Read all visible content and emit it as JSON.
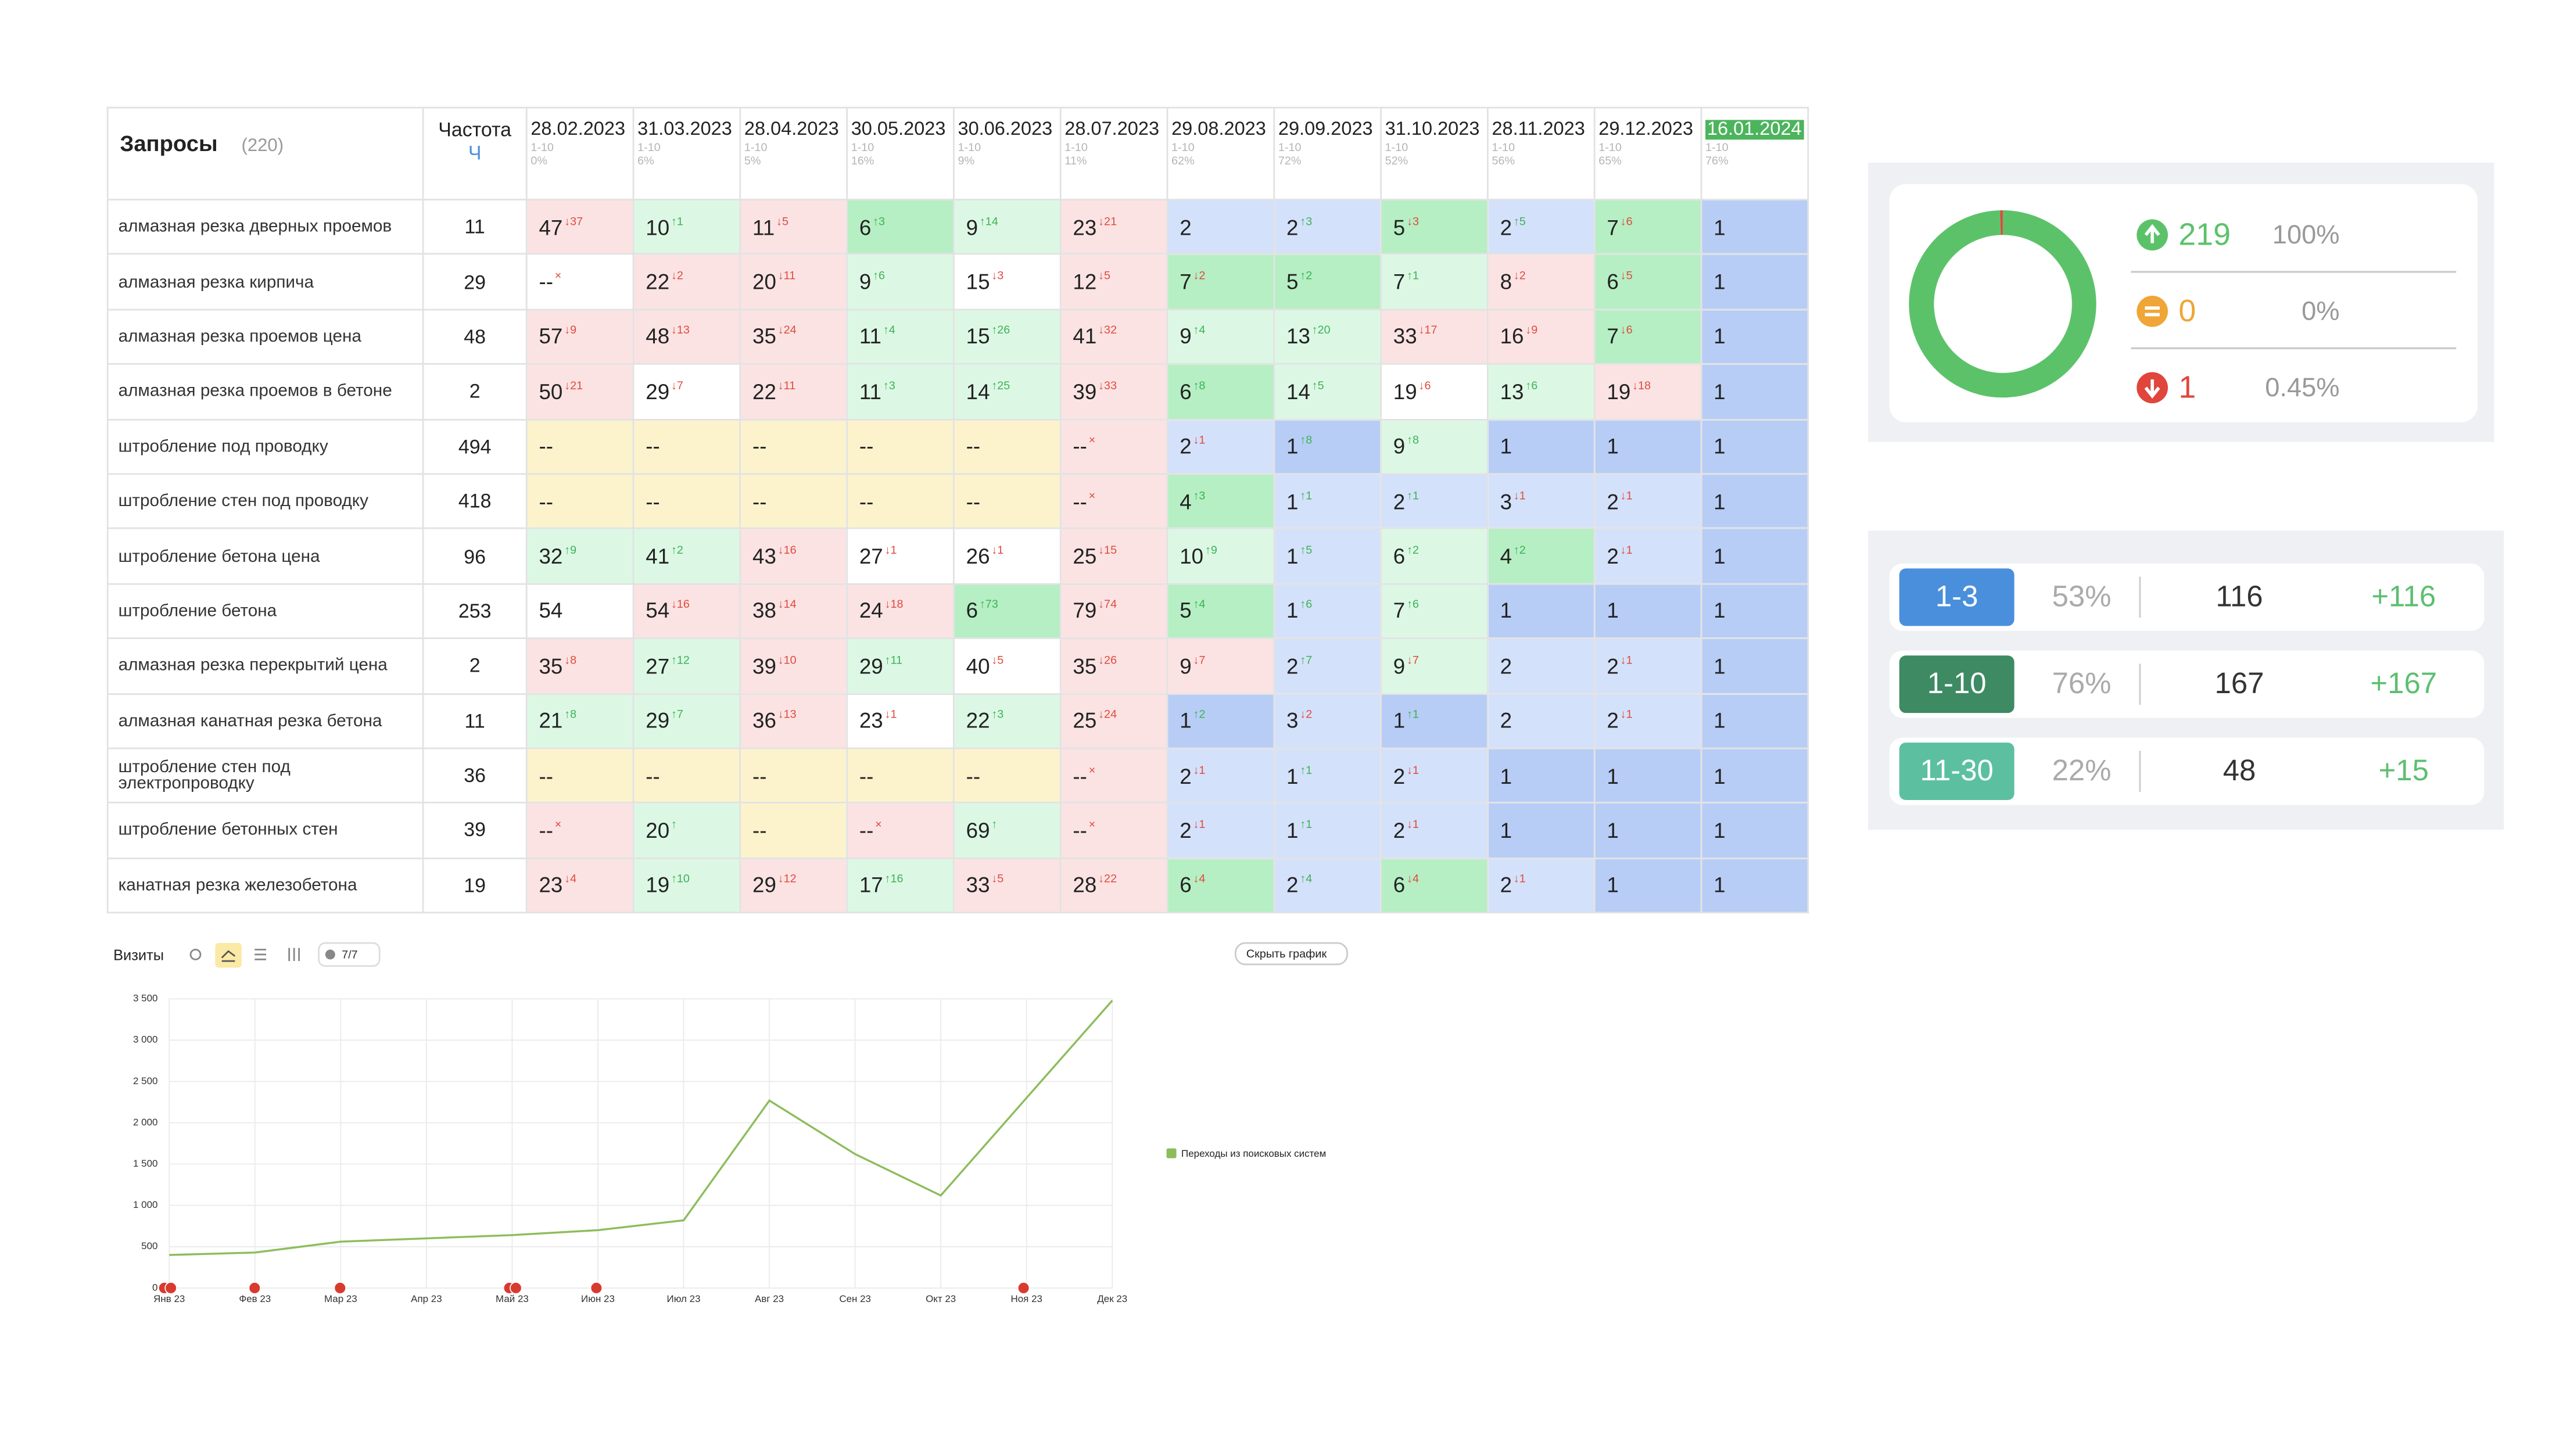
{
  "table": {
    "header": {
      "queries": "Запросы",
      "count": "(220)",
      "freq": "Частота",
      "freq_sub": "Ч"
    },
    "palette": {
      "r": "#fbe3e3",
      "w": "#ffffff",
      "g": "#dcf8e4",
      "G": "#b5efc3",
      "b": "#d4e1fb",
      "B": "#b7cdf6",
      "y": "#fcf3cd"
    },
    "dates": [
      {
        "date": "28.02.2023",
        "range": "1-10",
        "share": "0%"
      },
      {
        "date": "31.03.2023",
        "range": "1-10",
        "share": "6%"
      },
      {
        "date": "28.04.2023",
        "range": "1-10",
        "share": "5%"
      },
      {
        "date": "30.05.2023",
        "range": "1-10",
        "share": "16%"
      },
      {
        "date": "30.06.2023",
        "range": "1-10",
        "share": "9%"
      },
      {
        "date": "28.07.2023",
        "range": "1-10",
        "share": "11%"
      },
      {
        "date": "29.08.2023",
        "range": "1-10",
        "share": "62%"
      },
      {
        "date": "29.09.2023",
        "range": "1-10",
        "share": "72%"
      },
      {
        "date": "31.10.2023",
        "range": "1-10",
        "share": "52%"
      },
      {
        "date": "28.11.2023",
        "range": "1-10",
        "share": "56%"
      },
      {
        "date": "29.12.2023",
        "range": "1-10",
        "share": "65%"
      },
      {
        "date": "16.01.2024",
        "range": "1-10",
        "share": "76%"
      }
    ],
    "rows": [
      {
        "query": "алмазная резка дверных проемов",
        "freq": "11",
        "cells": [
          {
            "v": "47",
            "d": "↓37",
            "bg": "r"
          },
          {
            "v": "10",
            "d": "↑1",
            "bg": "g"
          },
          {
            "v": "11",
            "d": "↓5",
            "bg": "r"
          },
          {
            "v": "6",
            "d": "↑3",
            "bg": "G"
          },
          {
            "v": "9",
            "d": "↑14",
            "bg": "g"
          },
          {
            "v": "23",
            "d": "↓21",
            "bg": "r"
          },
          {
            "v": "2",
            "bg": "b"
          },
          {
            "v": "2",
            "d": "↑3",
            "bg": "b"
          },
          {
            "v": "5",
            "d": "↓3",
            "bg": "G"
          },
          {
            "v": "2",
            "d": "↑5",
            "bg": "b"
          },
          {
            "v": "7",
            "d": "↓6",
            "bg": "G"
          },
          {
            "v": "1",
            "bg": "B"
          }
        ]
      },
      {
        "query": "алмазная резка кирпича",
        "freq": "29",
        "cells": [
          {
            "v": "--",
            "d": "×",
            "bg": "w"
          },
          {
            "v": "22",
            "d": "↓2",
            "bg": "r"
          },
          {
            "v": "20",
            "d": "↓11",
            "bg": "r"
          },
          {
            "v": "9",
            "d": "↑6",
            "bg": "g"
          },
          {
            "v": "15",
            "d": "↓3",
            "bg": "w"
          },
          {
            "v": "12",
            "d": "↓5",
            "bg": "r"
          },
          {
            "v": "7",
            "d": "↓2",
            "bg": "G"
          },
          {
            "v": "5",
            "d": "↑2",
            "bg": "G"
          },
          {
            "v": "7",
            "d": "↑1",
            "bg": "g"
          },
          {
            "v": "8",
            "d": "↓2",
            "bg": "r"
          },
          {
            "v": "6",
            "d": "↓5",
            "bg": "G"
          },
          {
            "v": "1",
            "bg": "B"
          }
        ]
      },
      {
        "query": "алмазная резка проемов цена",
        "freq": "48",
        "cells": [
          {
            "v": "57",
            "d": "↓9",
            "bg": "r"
          },
          {
            "v": "48",
            "d": "↓13",
            "bg": "r"
          },
          {
            "v": "35",
            "d": "↓24",
            "bg": "r"
          },
          {
            "v": "11",
            "d": "↑4",
            "bg": "g"
          },
          {
            "v": "15",
            "d": "↑26",
            "bg": "g"
          },
          {
            "v": "41",
            "d": "↓32",
            "bg": "r"
          },
          {
            "v": "9",
            "d": "↑4",
            "bg": "g"
          },
          {
            "v": "13",
            "d": "↑20",
            "bg": "g"
          },
          {
            "v": "33",
            "d": "↓17",
            "bg": "r"
          },
          {
            "v": "16",
            "d": "↓9",
            "bg": "r"
          },
          {
            "v": "7",
            "d": "↓6",
            "bg": "G"
          },
          {
            "v": "1",
            "bg": "B"
          }
        ]
      },
      {
        "query": "алмазная резка проемов в бетоне",
        "freq": "2",
        "cells": [
          {
            "v": "50",
            "d": "↓21",
            "bg": "r"
          },
          {
            "v": "29",
            "d": "↓7",
            "bg": "w"
          },
          {
            "v": "22",
            "d": "↓11",
            "bg": "r"
          },
          {
            "v": "11",
            "d": "↑3",
            "bg": "g"
          },
          {
            "v": "14",
            "d": "↑25",
            "bg": "g"
          },
          {
            "v": "39",
            "d": "↓33",
            "bg": "r"
          },
          {
            "v": "6",
            "d": "↑8",
            "bg": "G"
          },
          {
            "v": "14",
            "d": "↑5",
            "bg": "g"
          },
          {
            "v": "19",
            "d": "↓6",
            "bg": "w"
          },
          {
            "v": "13",
            "d": "↑6",
            "bg": "g"
          },
          {
            "v": "19",
            "d": "↓18",
            "bg": "r"
          },
          {
            "v": "1",
            "bg": "B"
          }
        ]
      },
      {
        "query": "штробление под проводку",
        "freq": "494",
        "cells": [
          {
            "v": "--",
            "bg": "y"
          },
          {
            "v": "--",
            "bg": "y"
          },
          {
            "v": "--",
            "bg": "y"
          },
          {
            "v": "--",
            "bg": "y"
          },
          {
            "v": "--",
            "bg": "y"
          },
          {
            "v": "--",
            "d": "×",
            "bg": "r"
          },
          {
            "v": "2",
            "d": "↓1",
            "bg": "b"
          },
          {
            "v": "1",
            "d": "↑8",
            "bg": "B"
          },
          {
            "v": "9",
            "d": "↑8",
            "bg": "g"
          },
          {
            "v": "1",
            "bg": "B"
          },
          {
            "v": "1",
            "bg": "B"
          },
          {
            "v": "1",
            "bg": "B"
          }
        ]
      },
      {
        "query": "штробление стен под проводку",
        "freq": "418",
        "cells": [
          {
            "v": "--",
            "bg": "y"
          },
          {
            "v": "--",
            "bg": "y"
          },
          {
            "v": "--",
            "bg": "y"
          },
          {
            "v": "--",
            "bg": "y"
          },
          {
            "v": "--",
            "bg": "y"
          },
          {
            "v": "--",
            "d": "×",
            "bg": "r"
          },
          {
            "v": "4",
            "d": "↑3",
            "bg": "G"
          },
          {
            "v": "1",
            "d": "↑1",
            "bg": "b"
          },
          {
            "v": "2",
            "d": "↑1",
            "bg": "b"
          },
          {
            "v": "3",
            "d": "↓1",
            "bg": "b"
          },
          {
            "v": "2",
            "d": "↓1",
            "bg": "b"
          },
          {
            "v": "1",
            "bg": "B"
          }
        ]
      },
      {
        "query": "штробление бетона цена",
        "freq": "96",
        "cells": [
          {
            "v": "32",
            "d": "↑9",
            "bg": "g"
          },
          {
            "v": "41",
            "d": "↑2",
            "bg": "g"
          },
          {
            "v": "43",
            "d": "↓16",
            "bg": "r"
          },
          {
            "v": "27",
            "d": "↓1",
            "bg": "w"
          },
          {
            "v": "26",
            "d": "↓1",
            "bg": "w"
          },
          {
            "v": "25",
            "d": "↓15",
            "bg": "r"
          },
          {
            "v": "10",
            "d": "↑9",
            "bg": "g"
          },
          {
            "v": "1",
            "d": "↑5",
            "bg": "b"
          },
          {
            "v": "6",
            "d": "↑2",
            "bg": "g"
          },
          {
            "v": "4",
            "d": "↑2",
            "bg": "G"
          },
          {
            "v": "2",
            "d": "↓1",
            "bg": "b"
          },
          {
            "v": "1",
            "bg": "B"
          }
        ]
      },
      {
        "query": "штробление бетона",
        "freq": "253",
        "cells": [
          {
            "v": "54",
            "bg": "w"
          },
          {
            "v": "54",
            "d": "↓16",
            "bg": "r"
          },
          {
            "v": "38",
            "d": "↓14",
            "bg": "r"
          },
          {
            "v": "24",
            "d": "↓18",
            "bg": "r"
          },
          {
            "v": "6",
            "d": "↑73",
            "bg": "G"
          },
          {
            "v": "79",
            "d": "↓74",
            "bg": "r"
          },
          {
            "v": "5",
            "d": "↑4",
            "bg": "G"
          },
          {
            "v": "1",
            "d": "↑6",
            "bg": "b"
          },
          {
            "v": "7",
            "d": "↑6",
            "bg": "g"
          },
          {
            "v": "1",
            "bg": "B"
          },
          {
            "v": "1",
            "bg": "B"
          },
          {
            "v": "1",
            "bg": "B"
          }
        ]
      },
      {
        "query": "алмазная резка перекрытий цена",
        "freq": "2",
        "cells": [
          {
            "v": "35",
            "d": "↓8",
            "bg": "r"
          },
          {
            "v": "27",
            "d": "↑12",
            "bg": "g"
          },
          {
            "v": "39",
            "d": "↓10",
            "bg": "r"
          },
          {
            "v": "29",
            "d": "↑11",
            "bg": "g"
          },
          {
            "v": "40",
            "d": "↓5",
            "bg": "w"
          },
          {
            "v": "35",
            "d": "↓26",
            "bg": "r"
          },
          {
            "v": "9",
            "d": "↓7",
            "bg": "r"
          },
          {
            "v": "2",
            "d": "↑7",
            "bg": "b"
          },
          {
            "v": "9",
            "d": "↓7",
            "bg": "g"
          },
          {
            "v": "2",
            "bg": "b"
          },
          {
            "v": "2",
            "d": "↓1",
            "bg": "b"
          },
          {
            "v": "1",
            "bg": "B"
          }
        ]
      },
      {
        "query": "алмазная канатная резка бетона",
        "freq": "11",
        "cells": [
          {
            "v": "21",
            "d": "↑8",
            "bg": "g"
          },
          {
            "v": "29",
            "d": "↑7",
            "bg": "g"
          },
          {
            "v": "36",
            "d": "↓13",
            "bg": "r"
          },
          {
            "v": "23",
            "d": "↓1",
            "bg": "w"
          },
          {
            "v": "22",
            "d": "↑3",
            "bg": "g"
          },
          {
            "v": "25",
            "d": "↓24",
            "bg": "r"
          },
          {
            "v": "1",
            "d": "↑2",
            "bg": "B"
          },
          {
            "v": "3",
            "d": "↓2",
            "bg": "b"
          },
          {
            "v": "1",
            "d": "↑1",
            "bg": "B"
          },
          {
            "v": "2",
            "bg": "b"
          },
          {
            "v": "2",
            "d": "↓1",
            "bg": "b"
          },
          {
            "v": "1",
            "bg": "B"
          }
        ]
      },
      {
        "query": "штробление стен под электропроводку",
        "freq": "36",
        "cells": [
          {
            "v": "--",
            "bg": "y"
          },
          {
            "v": "--",
            "bg": "y"
          },
          {
            "v": "--",
            "bg": "y"
          },
          {
            "v": "--",
            "bg": "y"
          },
          {
            "v": "--",
            "bg": "y"
          },
          {
            "v": "--",
            "d": "×",
            "bg": "r"
          },
          {
            "v": "2",
            "d": "↓1",
            "bg": "b"
          },
          {
            "v": "1",
            "d": "↑1",
            "bg": "b"
          },
          {
            "v": "2",
            "d": "↓1",
            "bg": "b"
          },
          {
            "v": "1",
            "bg": "B"
          },
          {
            "v": "1",
            "bg": "B"
          },
          {
            "v": "1",
            "bg": "B"
          }
        ]
      },
      {
        "query": "штробление бетонных стен",
        "freq": "39",
        "cells": [
          {
            "v": "--",
            "d": "×",
            "bg": "r"
          },
          {
            "v": "20",
            "d": "↑",
            "bg": "g"
          },
          {
            "v": "--",
            "bg": "y"
          },
          {
            "v": "--",
            "d": "×",
            "bg": "r"
          },
          {
            "v": "69",
            "d": "↑",
            "bg": "g"
          },
          {
            "v": "--",
            "d": "×",
            "bg": "r"
          },
          {
            "v": "2",
            "d": "↓1",
            "bg": "b"
          },
          {
            "v": "1",
            "d": "↑1",
            "bg": "b"
          },
          {
            "v": "2",
            "d": "↓1",
            "bg": "b"
          },
          {
            "v": "1",
            "bg": "B"
          },
          {
            "v": "1",
            "bg": "B"
          },
          {
            "v": "1",
            "bg": "B"
          }
        ]
      },
      {
        "query": "канатная резка железобетона",
        "freq": "19",
        "cells": [
          {
            "v": "23",
            "d": "↓4",
            "bg": "r"
          },
          {
            "v": "19",
            "d": "↑10",
            "bg": "g"
          },
          {
            "v": "29",
            "d": "↓12",
            "bg": "r"
          },
          {
            "v": "17",
            "d": "↑16",
            "bg": "g"
          },
          {
            "v": "33",
            "d": "↓5",
            "bg": "r"
          },
          {
            "v": "28",
            "d": "↓22",
            "bg": "r"
          },
          {
            "v": "6",
            "d": "↓4",
            "bg": "G"
          },
          {
            "v": "2",
            "d": "↑4",
            "bg": "b"
          },
          {
            "v": "6",
            "d": "↓4",
            "bg": "G"
          },
          {
            "v": "2",
            "d": "↓1",
            "bg": "b"
          },
          {
            "v": "1",
            "bg": "B"
          },
          {
            "v": "1",
            "bg": "B"
          }
        ]
      }
    ]
  },
  "donut": {
    "items": [
      {
        "value": 219,
        "share": "100%",
        "color": "#5cc26a"
      },
      {
        "value": 0,
        "share": "0%",
        "color": "#efa637"
      },
      {
        "value": 1,
        "share": "0.45%",
        "color": "#e0463c"
      }
    ]
  },
  "ranges": {
    "items": [
      {
        "range": "1-3",
        "share": "53%",
        "count": 116,
        "delta": "+116",
        "color": "#4a8fdc"
      },
      {
        "range": "1-10",
        "share": "76%",
        "count": 167,
        "delta": "+167",
        "color": "#3d8a63"
      },
      {
        "range": "11-30",
        "share": "22%",
        "count": 48,
        "delta": "+15",
        "color": "#5cc0a0"
      }
    ]
  },
  "controls": {
    "filter": "7/7",
    "hide_chart": "Скрыть график"
  },
  "chart_data": {
    "type": "line",
    "title": "Визиты",
    "categories": [
      "Янв 23",
      "Фев 23",
      "Мар 23",
      "Апр 23",
      "Май 23",
      "Июн 23",
      "Июл 23",
      "Авг 23",
      "Сен 23",
      "Окт 23",
      "Ноя 23",
      "Дек 23"
    ],
    "series": [
      {
        "name": "Переходы из поисковых систем",
        "color": "#8cbd5b",
        "values": [
          400,
          430,
          560,
          600,
          640,
          700,
          820,
          2270,
          1620,
          1120,
          2300,
          3480
        ]
      }
    ],
    "ylim": [
      0,
      3500
    ],
    "yticks": [
      0,
      500,
      {
        "value": 1000,
        "label": "1 000"
      },
      {
        "value": 1500,
        "label": "1 500"
      },
      {
        "value": 2000,
        "label": "2 000"
      },
      {
        "value": 2500,
        "label": "2 500"
      },
      {
        "value": 3000,
        "label": "3 000"
      },
      {
        "value": 3500,
        "label": "3 500"
      }
    ],
    "grid": true
  }
}
